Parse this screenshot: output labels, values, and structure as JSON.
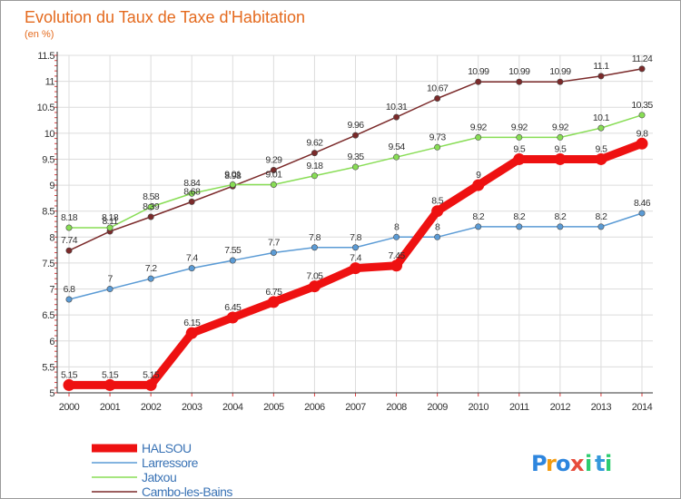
{
  "chart_data": {
    "type": "line",
    "title": "Evolution du Taux de Taxe d'Habitation",
    "subtitle": "(en %)",
    "xlabel": "",
    "ylabel": "",
    "x": [
      "2000",
      "2001",
      "2002",
      "2003",
      "2004",
      "2005",
      "2006",
      "2007",
      "2008",
      "2009",
      "2010",
      "2011",
      "2012",
      "2013",
      "2014"
    ],
    "ylim": [
      5,
      11.5
    ],
    "yticks": [
      "5",
      "5.5",
      "6",
      "6.5",
      "7",
      "7.5",
      "8",
      "8.5",
      "9",
      "9.5",
      "10",
      "10.5",
      "11",
      "11.5"
    ],
    "grid": true,
    "legend_position": "bottom-left",
    "series": [
      {
        "name": "HALSOU",
        "color": "#ee1111",
        "values": [
          5.15,
          5.15,
          5.15,
          6.15,
          6.45,
          6.75,
          7.05,
          7.4,
          7.45,
          8.5,
          9,
          9.5,
          9.5,
          9.5,
          9.8
        ],
        "labels": [
          "5.15",
          "5.15",
          "5.15",
          "6.15",
          "6.45",
          "6.75",
          "7.05",
          "7.4",
          "7.45",
          "8.5",
          "9",
          "9.5",
          "9.5",
          "9.5",
          "9.8"
        ]
      },
      {
        "name": "Larressore",
        "color": "#5b9bd5",
        "values": [
          6.8,
          7,
          7.2,
          7.4,
          7.55,
          7.7,
          7.8,
          7.8,
          8,
          8,
          8.2,
          8.2,
          8.2,
          8.2,
          8.46
        ],
        "labels": [
          "6.8",
          "7",
          "7.2",
          "7.4",
          "7.55",
          "7.7",
          "7.8",
          "7.8",
          "8",
          "8",
          "8.2",
          "8.2",
          "8.2",
          "8.2",
          "8.46"
        ]
      },
      {
        "name": "Jatxou",
        "color": "#88dd55",
        "values": [
          8.18,
          8.18,
          8.58,
          8.84,
          9.01,
          9.01,
          9.18,
          9.35,
          9.54,
          9.73,
          9.92,
          9.92,
          9.92,
          10.1,
          10.35
        ],
        "labels": [
          "8.18",
          "8.18",
          "8.58",
          "8.84",
          "9.01",
          "9.01",
          "9.18",
          "9.35",
          "9.54",
          "9.73",
          "9.92",
          "9.92",
          "9.92",
          "10.1",
          "10.35"
        ]
      },
      {
        "name": "Cambo-les-Bains",
        "color": "#7b2a2a",
        "values": [
          7.74,
          8.11,
          8.39,
          8.68,
          8.98,
          9.29,
          9.62,
          9.96,
          10.31,
          10.67,
          10.99,
          10.99,
          10.99,
          11.1,
          11.24
        ],
        "labels": [
          "7.74",
          "8.11",
          "8.39",
          "8.68",
          "8.98",
          "9.29",
          "9.62",
          "9.96",
          "10.31",
          "10.67",
          "10.99",
          "10.99",
          "10.99",
          "11.1",
          "11.24"
        ]
      }
    ]
  },
  "logo": {
    "text": "Proxiti",
    "letters": [
      "P",
      "r",
      "o",
      "x",
      "i",
      "t",
      "i"
    ],
    "colors": [
      "#2e86de",
      "#f39c12",
      "#2e86de",
      "#e74c3c",
      "#2ecc71",
      "#3498db",
      "#2ecc71"
    ]
  }
}
